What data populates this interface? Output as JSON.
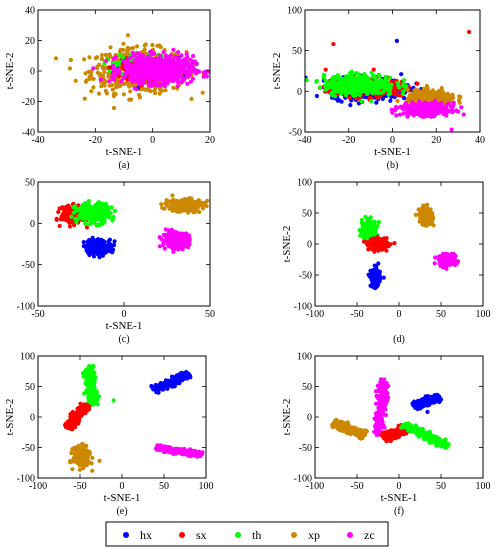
{
  "chart_data": [
    {
      "type": "scatter",
      "caption": "(a)",
      "xlabel": "t-SNE-1",
      "ylabel": "t-SNE-2",
      "xlim": [
        -40,
        20
      ],
      "ylim": [
        -40,
        40
      ],
      "xticks": [
        -40,
        -20,
        0,
        20
      ],
      "yticks": [
        -40,
        -20,
        0,
        20,
        40
      ],
      "grid": false,
      "clusters": [
        {
          "series": "xp",
          "shape": "ellipse",
          "center": [
            -5,
            0
          ],
          "spread": [
            15,
            13
          ],
          "count": 520
        },
        {
          "series": "hx",
          "shape": "ellipse",
          "center": [
            -2,
            2
          ],
          "spread": [
            10,
            6
          ],
          "count": 160
        },
        {
          "series": "th",
          "shape": "ellipse",
          "center": [
            -4,
            4
          ],
          "spread": [
            8,
            6
          ],
          "count": 200
        },
        {
          "series": "sx",
          "shape": "ellipse",
          "center": [
            -2,
            1
          ],
          "spread": [
            8,
            6
          ],
          "count": 150
        },
        {
          "series": "zc",
          "shape": "ellipse",
          "center": [
            2,
            1
          ],
          "spread": [
            11,
            8
          ],
          "count": 700
        }
      ]
    },
    {
      "type": "scatter",
      "caption": "(b)",
      "xlabel": "t-SNE-1",
      "ylabel": "t-SNE-2",
      "xlim": [
        -40,
        40
      ],
      "ylim": [
        -50,
        100
      ],
      "xticks": [
        -40,
        -20,
        0,
        20,
        40
      ],
      "yticks": [
        -50,
        0,
        50,
        100
      ],
      "grid": false,
      "clusters": [
        {
          "series": "hx",
          "shape": "ellipse",
          "center": [
            -10,
            3
          ],
          "spread": [
            16,
            12
          ],
          "count": 320
        },
        {
          "series": "sx",
          "shape": "ellipse",
          "center": [
            -12,
            5
          ],
          "spread": [
            17,
            11
          ],
          "count": 300
        },
        {
          "series": "th",
          "shape": "ellipse",
          "center": [
            -15,
            8
          ],
          "spread": [
            15,
            12
          ],
          "count": 320
        },
        {
          "series": "xp",
          "shape": "ellipse",
          "center": [
            18,
            -8
          ],
          "spread": [
            10,
            8
          ],
          "count": 260
        },
        {
          "series": "zc",
          "shape": "ellipse",
          "center": [
            15,
            -22
          ],
          "spread": [
            10,
            7
          ],
          "count": 300
        }
      ],
      "outliers": [
        {
          "series": "sx",
          "x": -27,
          "y": 58
        },
        {
          "series": "sx",
          "x": 35,
          "y": 73
        },
        {
          "series": "hx",
          "x": 2,
          "y": 62
        },
        {
          "series": "zc",
          "x": 27,
          "y": -47
        }
      ]
    },
    {
      "type": "scatter",
      "caption": "(c)",
      "xlabel": "t-SNE-1",
      "ylabel": "",
      "xlim": [
        -50,
        50
      ],
      "ylim": [
        -100,
        50
      ],
      "xticks": [
        -50,
        0,
        50
      ],
      "yticks": [
        -100,
        -50,
        0,
        50
      ],
      "grid": false,
      "clusters": [
        {
          "series": "sx",
          "shape": "ellipse",
          "center": [
            -30,
            10
          ],
          "spread": [
            6,
            9
          ],
          "count": 200
        },
        {
          "series": "th",
          "shape": "ellipse",
          "center": [
            -18,
            12
          ],
          "spread": [
            9,
            11
          ],
          "count": 260
        },
        {
          "series": "hx",
          "shape": "ellipse",
          "center": [
            -15,
            -28
          ],
          "spread": [
            7,
            8
          ],
          "count": 200
        },
        {
          "series": "xp",
          "shape": "ellipse",
          "center": [
            35,
            22
          ],
          "spread": [
            10,
            7
          ],
          "count": 220
        },
        {
          "series": "zc",
          "shape": "ellipse",
          "center": [
            30,
            -20
          ],
          "spread": [
            7,
            8
          ],
          "count": 200
        }
      ]
    },
    {
      "type": "scatter",
      "caption": "(d)",
      "xlabel": "",
      "ylabel": "t-SNE-2",
      "xlim": [
        -100,
        100
      ],
      "ylim": [
        -100,
        100
      ],
      "xticks": [
        -100,
        -50,
        0,
        50,
        100
      ],
      "yticks": [
        -100,
        -50,
        0,
        50,
        100
      ],
      "grid": false,
      "clusters": [
        {
          "series": "th",
          "shape": "ellipse",
          "center": [
            -35,
            22
          ],
          "spread": [
            8,
            14
          ],
          "count": 230
        },
        {
          "series": "sx",
          "shape": "ellipse",
          "center": [
            -25,
            0
          ],
          "spread": [
            10,
            8
          ],
          "count": 210
        },
        {
          "series": "hx",
          "shape": "ellipse",
          "center": [
            -28,
            -55
          ],
          "spread": [
            5,
            13
          ],
          "count": 180
        },
        {
          "series": "xp",
          "shape": "ellipse",
          "center": [
            32,
            45
          ],
          "spread": [
            7,
            13
          ],
          "count": 220
        },
        {
          "series": "zc",
          "shape": "ellipse",
          "center": [
            58,
            -27
          ],
          "spread": [
            9,
            8
          ],
          "count": 200
        }
      ]
    },
    {
      "type": "scatter",
      "caption": "(e)",
      "xlabel": "t-SNE-1",
      "ylabel": "t-SNE-2",
      "xlim": [
        -100,
        100
      ],
      "ylim": [
        -100,
        100
      ],
      "xticks": [
        -100,
        -50,
        0,
        50,
        100
      ],
      "yticks": [
        -100,
        -50,
        0,
        50,
        100
      ],
      "grid": false,
      "clusters": [
        {
          "series": "th",
          "shape": "line",
          "from": [
            -36,
            20
          ],
          "to": [
            -38,
            85
          ],
          "width": 7,
          "count": 220
        },
        {
          "series": "sx",
          "shape": "line",
          "from": [
            -65,
            -18
          ],
          "to": [
            -42,
            20
          ],
          "width": 6,
          "count": 230
        },
        {
          "series": "hx",
          "shape": "line",
          "from": [
            38,
            44
          ],
          "to": [
            80,
            70
          ],
          "width": 6,
          "count": 220
        },
        {
          "series": "xp",
          "shape": "ellipse",
          "center": [
            -48,
            -65
          ],
          "spread": [
            9,
            14
          ],
          "count": 230
        },
        {
          "series": "zc",
          "shape": "line",
          "from": [
            40,
            -50
          ],
          "to": [
            95,
            -62
          ],
          "width": 5,
          "count": 220
        }
      ],
      "outliers": [
        {
          "series": "th",
          "x": -10,
          "y": 27
        }
      ]
    },
    {
      "type": "scatter",
      "caption": "(f)",
      "xlabel": "t-SNE-1",
      "ylabel": "t-SNE-2",
      "xlim": [
        -100,
        100
      ],
      "ylim": [
        -100,
        100
      ],
      "xticks": [
        -100,
        -50,
        0,
        50,
        100
      ],
      "yticks": [
        -100,
        -50,
        0,
        50,
        100
      ],
      "grid": false,
      "clusters": [
        {
          "series": "zc",
          "shape": "line",
          "from": [
            -25,
            -30
          ],
          "to": [
            -18,
            62
          ],
          "width": 6,
          "count": 220
        },
        {
          "series": "hx",
          "shape": "line",
          "from": [
            18,
            17
          ],
          "to": [
            48,
            33
          ],
          "width": 7,
          "count": 220
        },
        {
          "series": "xp",
          "shape": "line",
          "from": [
            -78,
            -10
          ],
          "to": [
            -40,
            -30
          ],
          "width": 7,
          "count": 220
        },
        {
          "series": "sx",
          "shape": "line",
          "from": [
            -18,
            -35
          ],
          "to": [
            10,
            -18
          ],
          "width": 8,
          "count": 220
        },
        {
          "series": "th",
          "shape": "line",
          "from": [
            5,
            -12
          ],
          "to": [
            58,
            -48
          ],
          "width": 6,
          "count": 230
        }
      ]
    }
  ],
  "legend": {
    "placement": "bottom",
    "entries": [
      {
        "name": "hx",
        "color": "#0000ff"
      },
      {
        "name": "sx",
        "color": "#ff0000"
      },
      {
        "name": "th",
        "color": "#00ff00"
      },
      {
        "name": "xp",
        "color": "#cc8800"
      },
      {
        "name": "zc",
        "color": "#ff00ff"
      }
    ]
  }
}
